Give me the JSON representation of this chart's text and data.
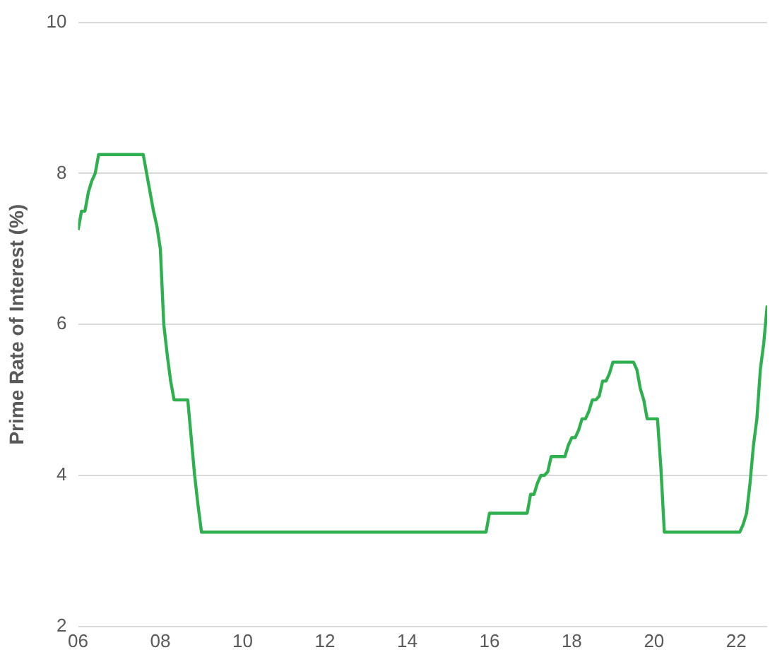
{
  "chart_data": {
    "type": "line",
    "ylabel": "Prime Rate of Interest (%)",
    "x": [
      "2006-01",
      "2006-02",
      "2006-03",
      "2006-04",
      "2006-05",
      "2006-06",
      "2006-07",
      "2007-08",
      "2007-09",
      "2007-10",
      "2007-11",
      "2007-12",
      "2008-01",
      "2008-02",
      "2008-03",
      "2008-04",
      "2008-05",
      "2008-09",
      "2008-10",
      "2008-11",
      "2008-12",
      "2009-01",
      "2015-11",
      "2015-12",
      "2016-01",
      "2016-11",
      "2016-12",
      "2017-01",
      "2017-02",
      "2017-03",
      "2017-04",
      "2017-05",
      "2017-06",
      "2017-07",
      "2017-11",
      "2017-12",
      "2018-01",
      "2018-02",
      "2018-03",
      "2018-04",
      "2018-05",
      "2018-06",
      "2018-07",
      "2018-08",
      "2018-09",
      "2018-10",
      "2018-11",
      "2018-12",
      "2019-01",
      "2019-07",
      "2019-08",
      "2019-09",
      "2019-10",
      "2019-11",
      "2020-02",
      "2020-03",
      "2020-04",
      "2022-02",
      "2022-03",
      "2022-04",
      "2022-05",
      "2022-06",
      "2022-07",
      "2022-08",
      "2022-09",
      "2022-10"
    ],
    "series": [
      {
        "color": "#2eb04f",
        "values": [
          7.25,
          7.5,
          7.5,
          7.75,
          7.9,
          8.0,
          8.25,
          8.25,
          8.0,
          7.75,
          7.5,
          7.3,
          7.0,
          6.0,
          5.6,
          5.25,
          5.0,
          5.0,
          4.5,
          4.0,
          3.6,
          3.25,
          3.25,
          3.25,
          3.5,
          3.5,
          3.5,
          3.75,
          3.75,
          3.9,
          4.0,
          4.0,
          4.05,
          4.25,
          4.25,
          4.4,
          4.5,
          4.5,
          4.6,
          4.75,
          4.75,
          4.85,
          5.0,
          5.0,
          5.05,
          5.25,
          5.25,
          5.35,
          5.5,
          5.5,
          5.4,
          5.15,
          5.0,
          4.75,
          4.75,
          4.1,
          3.25,
          3.25,
          3.35,
          3.5,
          3.9,
          4.4,
          4.75,
          5.4,
          5.75,
          6.25
        ]
      }
    ],
    "xlim": [
      "2006-01",
      "2022-10"
    ],
    "xticks": [
      {
        "value": "2006-01",
        "label": "06"
      },
      {
        "value": "2008-01",
        "label": "08"
      },
      {
        "value": "2010-01",
        "label": "10"
      },
      {
        "value": "2012-01",
        "label": "12"
      },
      {
        "value": "2014-01",
        "label": "14"
      },
      {
        "value": "2016-01",
        "label": "16"
      },
      {
        "value": "2018-01",
        "label": "18"
      },
      {
        "value": "2020-01",
        "label": "20"
      },
      {
        "value": "2022-01",
        "label": "22"
      }
    ],
    "ylim": [
      2,
      10
    ],
    "yticks": [
      2,
      4,
      6,
      8,
      10
    ],
    "grid": "y",
    "legend": false,
    "marker": "none",
    "line_style": "solid"
  }
}
